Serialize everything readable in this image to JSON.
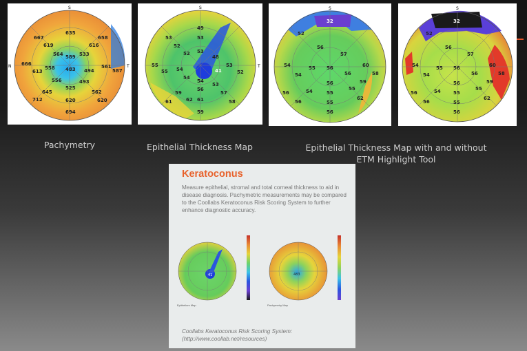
{
  "captions": {
    "pachymetry": "Pachymetry",
    "epithelial": "Epithelial Thickness Map",
    "etm_tool_line1": "Epithelial Thickness Map with and without",
    "etm_tool_line2": "ETM Highlight Tool"
  },
  "map_labels": {
    "top": "S",
    "bottom": "I",
    "left": "N",
    "right": "T"
  },
  "pachymetry_values": [
    "635",
    "658",
    "667",
    "619",
    "616",
    "564",
    "533",
    "666",
    "558",
    "483",
    "494",
    "561",
    "587",
    "613",
    "589",
    "493",
    "645",
    "556",
    "562",
    "712",
    "620",
    "620",
    "694",
    "525"
  ],
  "epithelial_values": [
    "49",
    "53",
    "53",
    "52",
    "52",
    "53",
    "55",
    "54",
    "41",
    "53",
    "52",
    "55",
    "54",
    "56",
    "53",
    "59",
    "54",
    "57",
    "61",
    "61",
    "58",
    "59",
    "62",
    "48"
  ],
  "etm_values": [
    "32",
    "52",
    "56",
    "57",
    "54",
    "55",
    "56",
    "60",
    "54",
    "56",
    "58",
    "56",
    "54",
    "55",
    "55",
    "62",
    "56",
    "59",
    "56",
    "55",
    "56"
  ],
  "card": {
    "title": "Keratoconus",
    "description": "Measure epithelial, stromal and total corneal thickness to aid in disease diagnosis. Pachymetric measurements may be compared to the Coollabs Keratoconus Risk Scoring System to further enhance diagnostic accuracy.",
    "footnote_line1": "Coollabs Keratoconus Risk Scoring System:",
    "footnote_line2": "(http://www.coollab.net/resources)",
    "mini_left_label": "Epithelium Map",
    "mini_right_label": "Pachymetry Map",
    "mini_left_value": "41",
    "mini_right_value": "483"
  }
}
